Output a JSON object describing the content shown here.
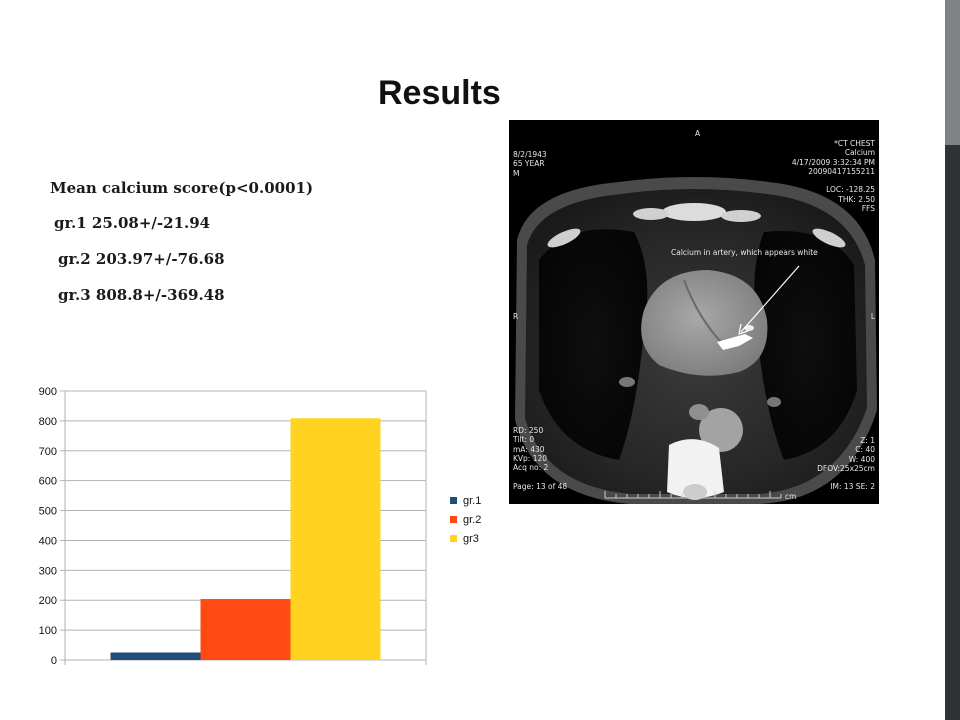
{
  "slide": {
    "title": "Results"
  },
  "stats": {
    "heading": "Mean calcium score(p<0.0001)",
    "lines": [
      "gr.1 25.08+/-21.94",
      "gr.2  203.97+/-76.68",
      "gr.3  808.8+/-369.48"
    ]
  },
  "chart_data": {
    "type": "bar",
    "categories": [
      ""
    ],
    "series": [
      {
        "name": "gr.1",
        "values": [
          25.08
        ],
        "color": "#1f4e79"
      },
      {
        "name": "gr.2",
        "values": [
          203.97
        ],
        "color": "#ff4a13"
      },
      {
        "name": "gr3",
        "values": [
          808.8
        ],
        "color": "#ffd320"
      }
    ],
    "yticks": [
      "0",
      "100",
      "200",
      "300",
      "400",
      "500",
      "600",
      "700",
      "800",
      "900"
    ],
    "ylim": [
      0,
      900
    ],
    "grid": true,
    "legend": "right"
  },
  "ct_image": {
    "top_center": "A",
    "top_left": [
      "8/2/1943",
      "65 YEAR",
      "M"
    ],
    "top_right": [
      "*CT CHEST",
      "Calcium",
      "4/17/2009 3:32:34 PM",
      "20090417155211",
      "",
      "LOC: -128.25",
      "THK: 2.50",
      "FFS"
    ],
    "annotation": "Calcium in artery, which appears white",
    "side_left": "R",
    "side_right": "L",
    "bottom_left": [
      "RD: 250",
      "Tilt: 0",
      "mA: 430",
      "KVp: 120",
      "Acq no: 2",
      "",
      "Page: 13 of 48"
    ],
    "bottom_right": [
      "Z: 1",
      "C: 40",
      "W: 400",
      "DFOV:25x25cm",
      "",
      "IM: 13 SE: 2"
    ],
    "scale_unit": "cm"
  }
}
